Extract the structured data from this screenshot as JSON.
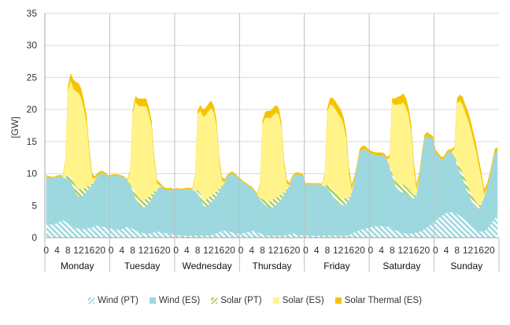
{
  "chart_data": {
    "type": "area",
    "stacked": true,
    "ylabel": "[GW]",
    "ylim": [
      0,
      35
    ],
    "yticks": [
      0,
      5,
      10,
      15,
      20,
      25,
      30,
      35
    ],
    "hour_ticks": [
      "0",
      "4",
      "8",
      "12",
      "16",
      "20"
    ],
    "days": [
      "Monday",
      "Tuesday",
      "Wednesday",
      "Thursday",
      "Friday",
      "Saturday",
      "Sunday"
    ],
    "grid": "horizontal",
    "legend_position": "bottom",
    "series": [
      {
        "name": "Wind (PT)",
        "color": "#9ed8df",
        "pattern": "hatch",
        "values": [
          2.2,
          2.1,
          2.0,
          2.1,
          2.3,
          2.5,
          2.7,
          2.5,
          2.2,
          1.9,
          1.6,
          1.5,
          1.4,
          1.3,
          1.3,
          1.4,
          1.5,
          1.6,
          1.8,
          1.9,
          1.8,
          1.7,
          1.6,
          1.5,
          1.4,
          1.3,
          1.2,
          1.2,
          1.3,
          1.5,
          1.7,
          1.6,
          1.4,
          1.1,
          0.9,
          0.8,
          0.7,
          0.6,
          0.6,
          0.7,
          0.8,
          0.9,
          0.9,
          0.8,
          0.7,
          0.6,
          0.5,
          0.5,
          0.4,
          0.4,
          0.3,
          0.3,
          0.3,
          0.3,
          0.3,
          0.3,
          0.3,
          0.3,
          0.3,
          0.3,
          0.3,
          0.4,
          0.5,
          0.7,
          0.9,
          1.0,
          1.1,
          1.0,
          0.9,
          0.8,
          0.7,
          0.6,
          0.6,
          0.7,
          0.8,
          0.9,
          1.0,
          1.1,
          0.9,
          0.7,
          0.5,
          0.4,
          0.3,
          0.3,
          0.3,
          0.3,
          0.3,
          0.3,
          0.3,
          0.4,
          0.5,
          0.6,
          0.6,
          0.5,
          0.4,
          0.3,
          0.3,
          0.3,
          0.3,
          0.3,
          0.3,
          0.3,
          0.3,
          0.3,
          0.3,
          0.3,
          0.3,
          0.3,
          0.3,
          0.3,
          0.3,
          0.3,
          0.4,
          0.6,
          0.8,
          1.0,
          1.2,
          1.3,
          1.4,
          1.5,
          1.6,
          1.7,
          1.8,
          1.8,
          1.8,
          1.8,
          1.7,
          1.6,
          1.4,
          1.2,
          1.0,
          0.8,
          0.7,
          0.6,
          0.6,
          0.6,
          0.7,
          0.8,
          0.9,
          1.1,
          1.3,
          1.6,
          1.9,
          2.2,
          2.6,
          3.0,
          3.3,
          3.6,
          3.8,
          3.9,
          4.0,
          3.9,
          3.7,
          3.4,
          3.1,
          2.7,
          2.3,
          1.9,
          1.5,
          1.2,
          1.0,
          0.9,
          1.0,
          1.3,
          1.8,
          2.4,
          3.0,
          3.6
        ]
      },
      {
        "name": "Wind (ES)",
        "color": "#9ed8df",
        "values": [
          7.3,
          7.3,
          7.3,
          7.2,
          7.2,
          7.1,
          6.8,
          6.8,
          7.0,
          7.0,
          6.2,
          5.4,
          5.0,
          5.1,
          5.4,
          5.8,
          6.2,
          6.6,
          7.1,
          7.8,
          8.3,
          8.4,
          8.2,
          8.0,
          8.2,
          8.4,
          8.5,
          8.4,
          8.2,
          7.8,
          7.2,
          6.6,
          5.9,
          5.0,
          4.4,
          4.0,
          4.0,
          4.3,
          4.8,
          5.3,
          6.0,
          6.4,
          7.1,
          7.0,
          6.8,
          6.8,
          7.0,
          6.9,
          7.1,
          7.1,
          7.1,
          7.2,
          7.3,
          7.3,
          7.2,
          7.0,
          6.6,
          5.8,
          4.8,
          4.5,
          4.8,
          5.1,
          5.4,
          5.8,
          6.3,
          6.9,
          7.5,
          8.5,
          9.0,
          9.2,
          9.0,
          8.7,
          8.4,
          7.9,
          7.5,
          7.1,
          6.8,
          6.2,
          5.8,
          5.3,
          5.0,
          4.7,
          4.5,
          4.2,
          4.5,
          4.8,
          5.2,
          5.7,
          6.3,
          7.0,
          7.6,
          8.7,
          9.2,
          9.4,
          9.4,
          9.4,
          8.0,
          8.0,
          8.0,
          8.0,
          8.0,
          8.0,
          7.9,
          7.7,
          7.4,
          6.9,
          6.2,
          5.6,
          5.0,
          4.8,
          4.8,
          5.0,
          5.3,
          6.2,
          8.1,
          10.1,
          12.2,
          12.5,
          12.4,
          12.0,
          11.6,
          11.3,
          11.1,
          11.1,
          11.1,
          11.0,
          10.5,
          9.4,
          8.2,
          7.1,
          6.6,
          6.4,
          6.4,
          6.3,
          6.0,
          5.7,
          5.4,
          5.9,
          8.5,
          11.7,
          14.2,
          14.3,
          13.7,
          13.2,
          10.8,
          9.8,
          9.0,
          8.6,
          9.2,
          9.5,
          9.4,
          8.6,
          7.6,
          6.8,
          6.2,
          5.3,
          4.7,
          4.1,
          3.8,
          3.6,
          3.5,
          4.2,
          5.3,
          6.3,
          7.4,
          8.8,
          10.3,
          10.0
        ]
      },
      {
        "name": "Solar (PT)",
        "color": "#a9cf5a",
        "pattern": "hatch",
        "values": [
          0,
          0,
          0,
          0,
          0,
          0,
          0,
          0.2,
          0.5,
          0.8,
          1.0,
          1.1,
          1.2,
          1.1,
          1.0,
          0.8,
          0.5,
          0.2,
          0,
          0,
          0,
          0,
          0,
          0,
          0,
          0,
          0,
          0,
          0,
          0,
          0,
          0.2,
          0.5,
          0.8,
          1.0,
          1.1,
          1.2,
          1.1,
          1.0,
          0.8,
          0.5,
          0.2,
          0,
          0,
          0,
          0,
          0,
          0,
          0,
          0,
          0,
          0,
          0,
          0,
          0,
          0.2,
          0.5,
          0.8,
          1.0,
          1.1,
          1.2,
          1.1,
          1.0,
          0.8,
          0.5,
          0.2,
          0,
          0,
          0,
          0,
          0,
          0,
          0,
          0,
          0,
          0,
          0,
          0,
          0,
          0.2,
          0.5,
          0.8,
          1.0,
          1.1,
          1.2,
          1.1,
          1.0,
          0.8,
          0.5,
          0.2,
          0,
          0,
          0,
          0,
          0,
          0,
          0,
          0,
          0,
          0,
          0,
          0,
          0,
          0.2,
          0.5,
          0.8,
          1.0,
          1.1,
          1.2,
          1.1,
          1.0,
          0.8,
          0.5,
          0.2,
          0,
          0,
          0,
          0,
          0,
          0,
          0,
          0,
          0,
          0,
          0,
          0,
          0,
          0.2,
          0.5,
          0.8,
          1.0,
          1.1,
          1.2,
          1.1,
          1.0,
          0.8,
          0.5,
          0.2,
          0,
          0,
          0,
          0,
          0,
          0,
          0,
          0,
          0,
          0,
          0,
          0,
          0,
          0.2,
          0.5,
          0.8,
          1.0,
          1.1,
          1.2,
          1.1,
          1.0,
          0.8,
          0.5,
          0.2,
          0,
          0,
          0,
          0,
          0,
          0
        ]
      },
      {
        "name": "Solar (ES)",
        "color": "#fff38a",
        "values": [
          0,
          0,
          0,
          0,
          0,
          0,
          0,
          2.0,
          13.0,
          14.8,
          14.5,
          14.8,
          15.0,
          14.2,
          12.2,
          9.7,
          4.4,
          0.9,
          0.3,
          0,
          0,
          0,
          0,
          0,
          0,
          0,
          0,
          0,
          0,
          0,
          0,
          1.8,
          11.5,
          14.3,
          14.3,
          14.6,
          14.6,
          14.5,
          12.8,
          10.5,
          4.6,
          0.9,
          0.2,
          0,
          0,
          0,
          0,
          0,
          0,
          0,
          0,
          0,
          0,
          0,
          0,
          1.8,
          11.8,
          12.9,
          12.8,
          13.2,
          13.4,
          13.6,
          12.6,
          10.2,
          4.1,
          0.8,
          0.1,
          0,
          0,
          0,
          0,
          0,
          0,
          0,
          0,
          0,
          0,
          0,
          0,
          1.8,
          11.6,
          12.8,
          12.9,
          13.0,
          13.1,
          13.3,
          12.7,
          10.4,
          4.2,
          0.8,
          0.1,
          0,
          0,
          0,
          0,
          0,
          0,
          0,
          0,
          0,
          0,
          0,
          0,
          1.5,
          11.4,
          12.8,
          13.1,
          13.0,
          12.8,
          12.5,
          11.5,
          9.4,
          3.8,
          0.5,
          0,
          0,
          0,
          0,
          0,
          0,
          0,
          0,
          0,
          0,
          0,
          0,
          0,
          1.3,
          11.0,
          11.6,
          12.2,
          12.5,
          12.8,
          12.5,
          11.5,
          9.5,
          4.2,
          0.6,
          0,
          0,
          0,
          0,
          0,
          0,
          0,
          0,
          0,
          0,
          0,
          0,
          0,
          1.1,
          9.2,
          10.3,
          10.5,
          10.4,
          10.2,
          9.8,
          8.9,
          7.9,
          6.3,
          4.0,
          0.5,
          0,
          0,
          0,
          0,
          0
        ]
      },
      {
        "name": "Solar Thermal (ES)",
        "color": "#f5c400",
        "values": [
          0.3,
          0.2,
          0.2,
          0.2,
          0.2,
          0.2,
          0.2,
          0.3,
          0.8,
          1.2,
          1.4,
          1.5,
          1.5,
          1.5,
          1.4,
          1.2,
          1.0,
          0.7,
          0.4,
          0.4,
          0.3,
          0.3,
          0.3,
          0.2,
          0.2,
          0.2,
          0.2,
          0.2,
          0.2,
          0.2,
          0.2,
          0.3,
          0.6,
          0.9,
          1.1,
          1.2,
          1.2,
          1.2,
          1.1,
          0.9,
          0.8,
          0.6,
          0.4,
          0.3,
          0.3,
          0.3,
          0.3,
          0.2,
          0.2,
          0.2,
          0.2,
          0.2,
          0.2,
          0.2,
          0.2,
          0.3,
          0.6,
          0.9,
          1.1,
          1.2,
          1.2,
          1.2,
          1.1,
          0.9,
          0.8,
          0.6,
          0.4,
          0.3,
          0.3,
          0.3,
          0.3,
          0.2,
          0.2,
          0.2,
          0.2,
          0.2,
          0.2,
          0.2,
          0.2,
          0.3,
          0.6,
          0.9,
          1.1,
          1.2,
          1.2,
          1.2,
          1.1,
          0.9,
          0.8,
          0.6,
          0.4,
          0.3,
          0.3,
          0.3,
          0.3,
          0.2,
          0.2,
          0.2,
          0.2,
          0.2,
          0.2,
          0.2,
          0.2,
          0.3,
          0.7,
          1.0,
          1.2,
          1.3,
          1.3,
          1.3,
          1.2,
          1.1,
          1.0,
          0.8,
          0.6,
          0.5,
          0.5,
          0.5,
          0.5,
          0.4,
          0.4,
          0.4,
          0.4,
          0.4,
          0.4,
          0.4,
          0.4,
          0.4,
          0.7,
          1.0,
          1.2,
          1.3,
          1.4,
          1.4,
          1.3,
          1.2,
          1.1,
          0.9,
          0.7,
          0.6,
          0.6,
          0.6,
          0.5,
          0.5,
          0.4,
          0.4,
          0.4,
          0.4,
          0.4,
          0.4,
          0.4,
          0.4,
          0.8,
          1.0,
          1.2,
          1.3,
          1.4,
          1.4,
          1.3,
          1.2,
          1.1,
          1.0,
          0.8,
          0.7,
          0.7,
          0.7,
          0.6,
          0.5
        ]
      }
    ]
  }
}
